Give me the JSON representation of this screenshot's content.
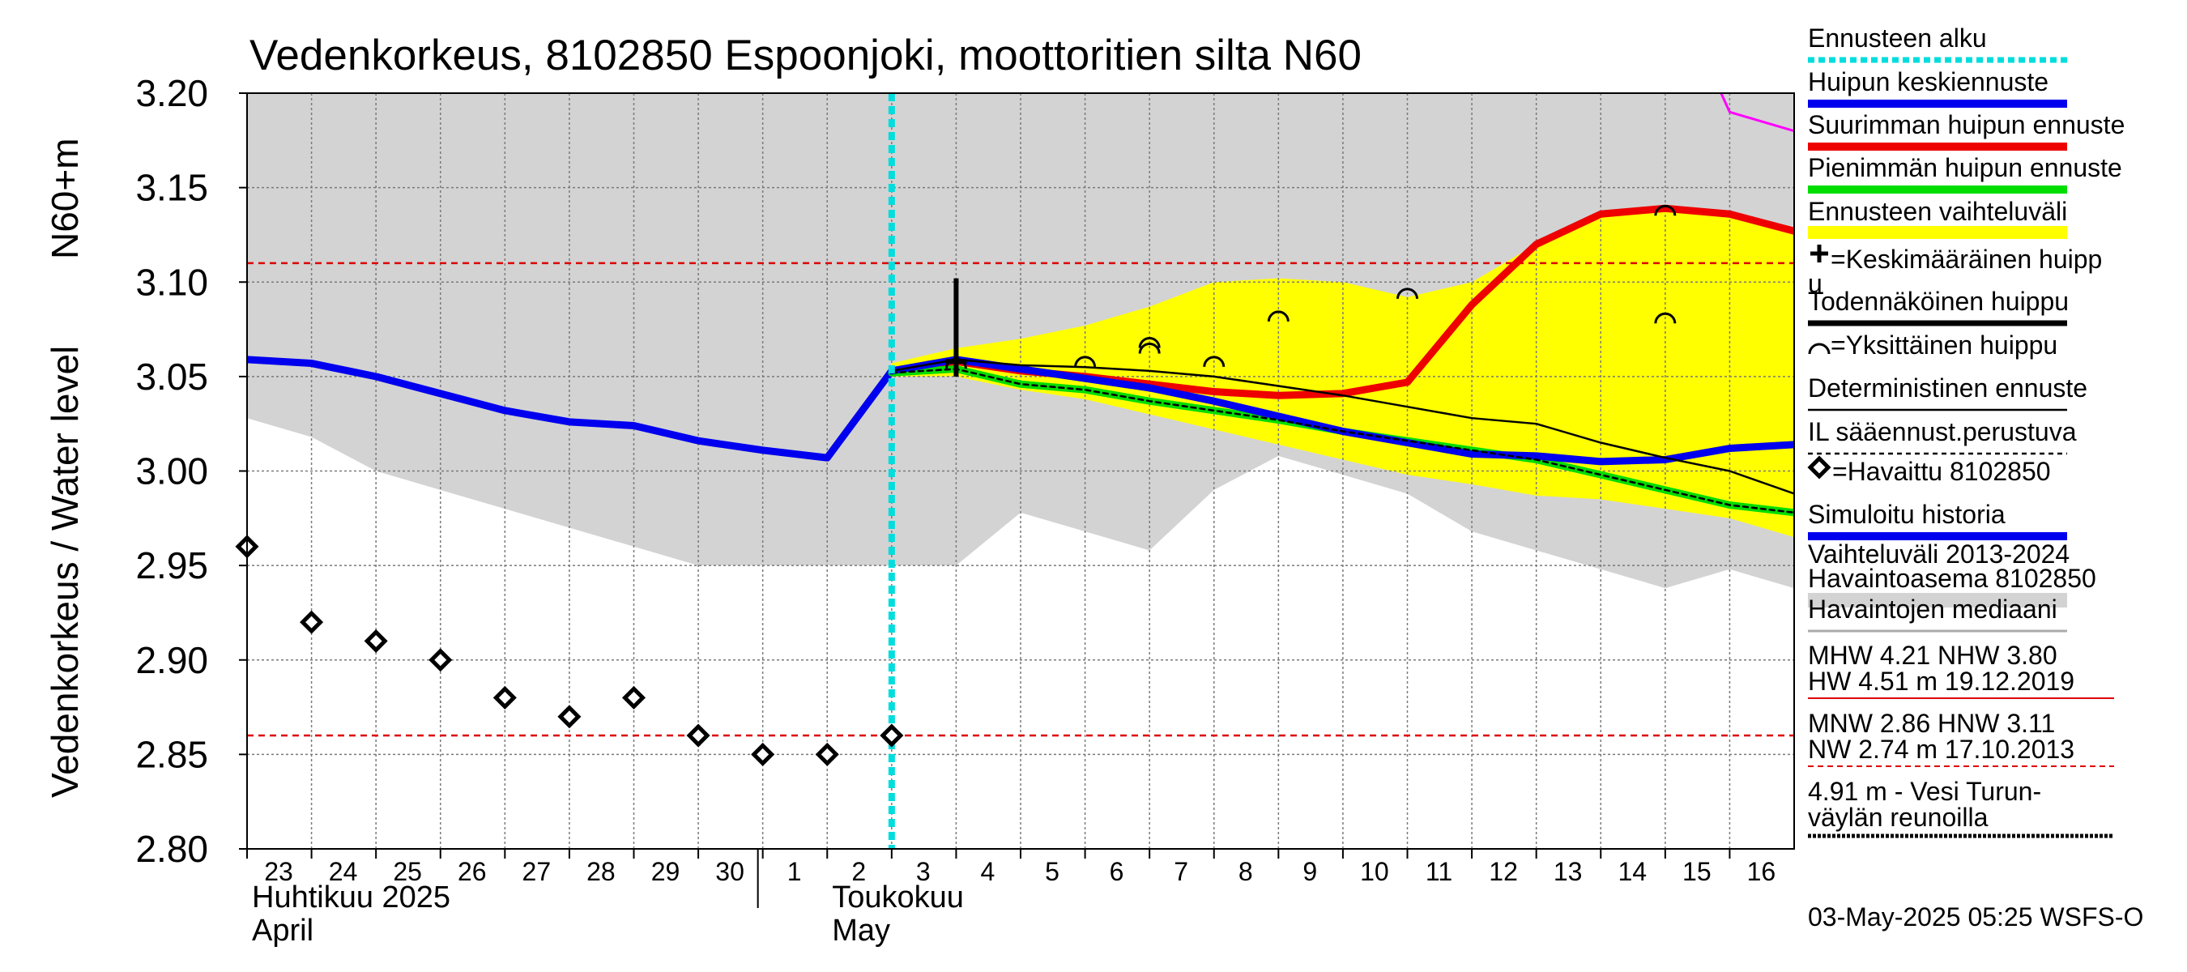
{
  "chart_data": {
    "type": "line",
    "title": "Vedenkorkeus, 8102850 Espoonjoki, moottoritien silta N60",
    "ylabel_main": "Vedenkorkeus / Water level",
    "ylabel_unit": "N60+m",
    "ylim": [
      2.8,
      3.2
    ],
    "yticks": [
      2.8,
      2.85,
      2.9,
      2.95,
      3.0,
      3.05,
      3.1,
      3.15,
      3.2
    ],
    "ytick_labels": [
      "2.80",
      "2.85",
      "2.90",
      "2.95",
      "3.00",
      "3.05",
      "3.10",
      "3.15",
      "3.20"
    ],
    "xlim": [
      0,
      24
    ],
    "day_ticks": [
      {
        "x": 0,
        "label": "23"
      },
      {
        "x": 1,
        "label": "24"
      },
      {
        "x": 2,
        "label": "25"
      },
      {
        "x": 3,
        "label": "26"
      },
      {
        "x": 4,
        "label": "27"
      },
      {
        "x": 5,
        "label": "28"
      },
      {
        "x": 6,
        "label": "29"
      },
      {
        "x": 7,
        "label": "30"
      },
      {
        "x": 8,
        "label": "1"
      },
      {
        "x": 9,
        "label": "2"
      },
      {
        "x": 10,
        "label": "3"
      },
      {
        "x": 11,
        "label": "4"
      },
      {
        "x": 12,
        "label": "5"
      },
      {
        "x": 13,
        "label": "6"
      },
      {
        "x": 14,
        "label": "7"
      },
      {
        "x": 15,
        "label": "8"
      },
      {
        "x": 16,
        "label": "9"
      },
      {
        "x": 17,
        "label": "10"
      },
      {
        "x": 18,
        "label": "11"
      },
      {
        "x": 19,
        "label": "12"
      },
      {
        "x": 20,
        "label": "13"
      },
      {
        "x": 21,
        "label": "14"
      },
      {
        "x": 22,
        "label": "15"
      },
      {
        "x": 23,
        "label": "16"
      }
    ],
    "month_labels": [
      {
        "x": 0,
        "fi": "Huhtikuu  2025",
        "en": "April"
      },
      {
        "x": 9,
        "fi": "Toukokuu",
        "en": "May"
      }
    ],
    "month_separator_x": 8,
    "forecast_start_x": 10,
    "reference_lines": [
      {
        "name": "HNW",
        "y": 3.11,
        "color": "#dd0000"
      },
      {
        "name": "MNW",
        "y": 2.86,
        "color": "#dd0000"
      }
    ],
    "range_band": {
      "name": "Vaihteluväli 2013-2024 Havaintoasema 8102850",
      "color": "#d3d3d3",
      "x": [
        0,
        1,
        2,
        3,
        4,
        5,
        6,
        7,
        8,
        9,
        10,
        11,
        12,
        13,
        14,
        15,
        16,
        17,
        18,
        19,
        20,
        21,
        22,
        23,
        24
      ],
      "upper": [
        3.2,
        3.2,
        3.2,
        3.2,
        3.2,
        3.2,
        3.2,
        3.2,
        3.2,
        3.2,
        3.2,
        3.2,
        3.2,
        3.2,
        3.2,
        3.2,
        3.2,
        3.2,
        3.2,
        3.2,
        3.2,
        3.2,
        3.2,
        3.2,
        3.2
      ],
      "lower": [
        3.028,
        3.018,
        3.0,
        2.99,
        2.98,
        2.97,
        2.96,
        2.95,
        2.95,
        2.95,
        2.95,
        2.95,
        2.978,
        2.968,
        2.958,
        2.99,
        3.008,
        2.998,
        2.988,
        2.968,
        2.958,
        2.948,
        2.938,
        2.948,
        2.938
      ]
    },
    "forecast_band": {
      "name": "Ennusteen vaihteluväli",
      "color": "#ffff00",
      "x": [
        10,
        11,
        12,
        13,
        14,
        15,
        16,
        17,
        18,
        19,
        20,
        21,
        22,
        23,
        24
      ],
      "upper": [
        3.057,
        3.065,
        3.07,
        3.077,
        3.087,
        3.1,
        3.102,
        3.1,
        3.092,
        3.1,
        3.12,
        3.136,
        3.138,
        3.134,
        3.127
      ],
      "lower": [
        3.05,
        3.05,
        3.043,
        3.038,
        3.03,
        3.022,
        3.014,
        3.006,
        2.998,
        2.993,
        2.987,
        2.985,
        2.98,
        2.975,
        2.965
      ]
    },
    "series": [
      {
        "name": "Simuloitu historia",
        "color": "#0000ee",
        "width": 9,
        "x": [
          0,
          1,
          2,
          3,
          4,
          5,
          6,
          7,
          8,
          9,
          10
        ],
        "y": [
          3.059,
          3.057,
          3.05,
          3.041,
          3.032,
          3.026,
          3.024,
          3.016,
          3.011,
          3.007,
          3.053
        ]
      },
      {
        "name": "Suurimman huipun ennuste",
        "color": "#ee0000",
        "width": 9,
        "x": [
          10,
          11,
          12,
          13,
          14,
          15,
          16,
          17,
          18,
          19,
          20,
          21,
          22,
          23,
          24
        ],
        "y": [
          3.053,
          3.058,
          3.053,
          3.05,
          3.046,
          3.042,
          3.04,
          3.041,
          3.047,
          3.088,
          3.12,
          3.136,
          3.139,
          3.136,
          3.127
        ]
      },
      {
        "name": "Pienimmän huipun ennuste",
        "color": "#00dd00",
        "width": 9,
        "x": [
          10,
          11,
          12,
          13,
          14,
          15,
          16,
          17,
          18,
          19,
          20,
          21,
          22,
          23,
          24
        ],
        "y": [
          3.052,
          3.054,
          3.046,
          3.043,
          3.037,
          3.032,
          3.027,
          3.021,
          3.016,
          3.011,
          3.006,
          2.998,
          2.99,
          2.982,
          2.978
        ]
      },
      {
        "name": "Huipun keskiennuste",
        "color": "#0000ee",
        "width": 9,
        "x": [
          10,
          11,
          12,
          13,
          14,
          15,
          16,
          17,
          18,
          19,
          20,
          21,
          22,
          23,
          24
        ],
        "y": [
          3.053,
          3.059,
          3.054,
          3.049,
          3.044,
          3.037,
          3.029,
          3.021,
          3.015,
          3.009,
          3.008,
          3.005,
          3.006,
          3.012,
          3.014
        ]
      },
      {
        "name": "IL sääennust.perustuva",
        "color": "#000000",
        "width": 2.5,
        "dash": "6,5",
        "x": [
          10,
          11,
          12,
          13,
          14,
          15,
          16,
          17,
          18,
          19,
          20,
          21,
          22,
          23,
          24
        ],
        "y": [
          3.052,
          3.054,
          3.046,
          3.043,
          3.037,
          3.032,
          3.027,
          3.021,
          3.016,
          3.011,
          3.006,
          2.998,
          2.99,
          2.982,
          2.978
        ]
      },
      {
        "name": "Deterministinen ennuste",
        "color": "#000000",
        "width": 2.5,
        "x": [
          10,
          11,
          12,
          13,
          14,
          15,
          16,
          17,
          18,
          19,
          20,
          21,
          22,
          23,
          24
        ],
        "y": [
          3.053,
          3.059,
          3.056,
          3.055,
          3.053,
          3.05,
          3.045,
          3.04,
          3.034,
          3.028,
          3.025,
          3.015,
          3.007,
          3.0,
          2.988
        ]
      },
      {
        "name": "4.91 m - Vesi Turunväylän reunoilla",
        "color": "#ff00ff",
        "width": 3,
        "x": [
          22.8,
          23.0,
          23.4,
          24.0
        ],
        "y": [
          3.205,
          3.19,
          3.186,
          3.18
        ]
      }
    ],
    "observed": {
      "name": "Havaittu 8102850",
      "x": [
        0,
        1,
        2,
        3,
        4,
        5,
        6,
        7,
        8,
        9,
        10
      ],
      "y": [
        2.96,
        2.92,
        2.91,
        2.9,
        2.88,
        2.87,
        2.88,
        2.86,
        2.85,
        2.85,
        2.86
      ]
    },
    "mean_peak": {
      "x": 11,
      "y": 3.058,
      "bar_top": 3.102,
      "bar_bottom": 3.05
    },
    "single_peaks": [
      {
        "x": 11,
        "y": 3.058
      },
      {
        "x": 13,
        "y": 3.059
      },
      {
        "x": 14,
        "y": 3.069
      },
      {
        "x": 14,
        "y": 3.066
      },
      {
        "x": 15,
        "y": 3.059
      },
      {
        "x": 16,
        "y": 3.083
      },
      {
        "x": 18,
        "y": 3.095
      },
      {
        "x": 22,
        "y": 3.139
      },
      {
        "x": 22,
        "y": 3.082
      }
    ],
    "legend": [
      {
        "text": "Ennusteen alku",
        "style": "cyan-dotted"
      },
      {
        "text": "Huipun keskiennuste",
        "style": "blue-thick"
      },
      {
        "text": "Suurimman huipun ennuste",
        "style": "red-thick"
      },
      {
        "text": "Pienimmän huipun ennuste",
        "style": "green-thick"
      },
      {
        "text": "Ennusteen vaihteluväli",
        "style": "yellow-band"
      },
      {
        "text": "=Keskimääräinen huipp",
        "text2": "u",
        "style": "plus-marker"
      },
      {
        "text": "Todennäköinen huippu",
        "style": "black-thick"
      },
      {
        "text": "=Yksittäinen huippu",
        "style": "arc-marker"
      },
      {
        "text": "Deterministinen ennuste",
        "style": "black-thin"
      },
      {
        "text": "IL sääennust.perustuva",
        "style": "black-dashed"
      },
      {
        "text": "=Havaittu 8102850",
        "style": "diamond-marker"
      },
      {
        "text": "Simuloitu historia",
        "style": "blue-thick"
      },
      {
        "text": "Vaihteluväli 2013-2024",
        "text2": " Havaintoasema 8102850",
        "style": "gray-band"
      },
      {
        "text": "Havaintojen mediaani",
        "style": "gray-line"
      }
    ],
    "stats": {
      "mhw_line": "MHW   4.21 NHW   3.80",
      "hw_line": "HW   4.51 m 19.12.2019",
      "mnw_line": "MNW   2.86 HNW   3.11",
      "nw_line": "NW   2.74 m 17.10.2013",
      "vesi_line1": "4.91 m - Vesi Turun-",
      "vesi_line2": "väylän reunoilla"
    },
    "timestamp": "03-May-2025 05:25 WSFS-O"
  }
}
